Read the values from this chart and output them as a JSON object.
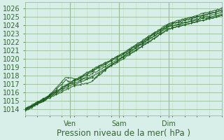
{
  "title": "",
  "xlabel": "Pression niveau de la mer( hPa )",
  "bg_color": "#d8eee8",
  "plot_bg_color": "#d8eee8",
  "grid_color_major": "#99bb99",
  "grid_color_minor": "#bbddbb",
  "line_color": "#1a5c1a",
  "marker_color": "#1a5c1a",
  "axis_color": "#336633",
  "yticks": [
    1014,
    1015,
    1016,
    1017,
    1018,
    1019,
    1020,
    1021,
    1022,
    1023,
    1024,
    1025,
    1026
  ],
  "ylim": [
    1013.3,
    1026.7
  ],
  "xlim": [
    0,
    96
  ],
  "xtick_positions": [
    22,
    46,
    70
  ],
  "xtick_labels": [
    "Ven",
    "Sam",
    "Dim"
  ],
  "xlabel_fontsize": 8.5,
  "tick_fontsize": 7,
  "figsize": [
    3.2,
    2.0
  ],
  "dpi": 100
}
